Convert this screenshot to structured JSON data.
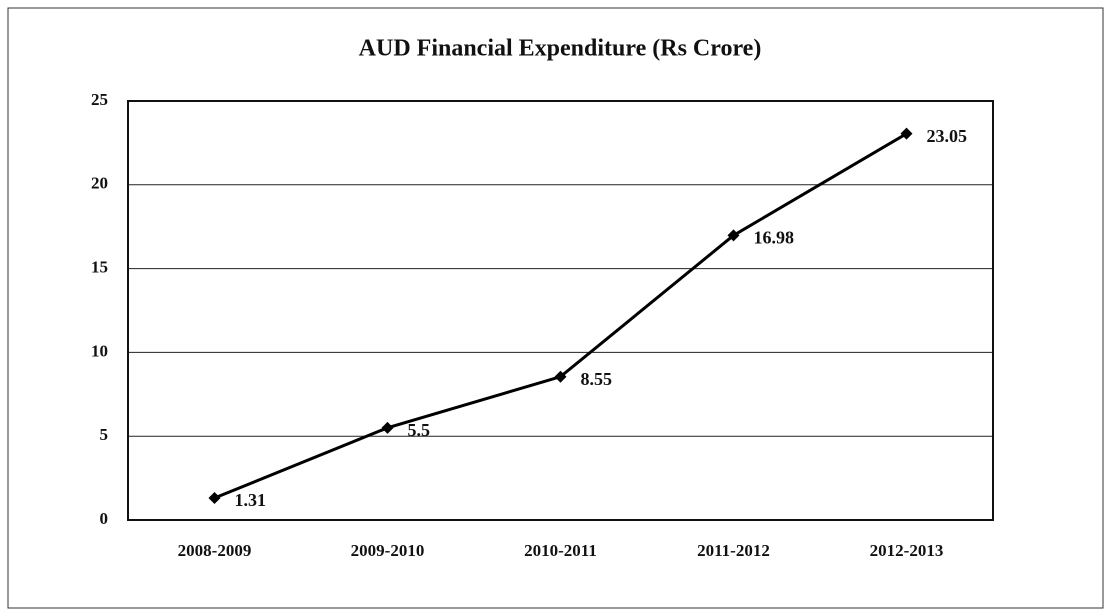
{
  "chart_data": {
    "type": "line",
    "title": "AUD Financial Expenditure (Rs Crore)",
    "categories": [
      "2008-2009",
      "2009-2010",
      "2010-2011",
      "2011-2012",
      "2012-2013"
    ],
    "values": [
      1.31,
      5.5,
      8.55,
      16.98,
      23.05
    ],
    "color": "#000000",
    "ylim": [
      0,
      25
    ],
    "yticks": [
      0,
      5,
      10,
      15,
      20,
      25
    ],
    "grid": true,
    "data_labels": true
  }
}
